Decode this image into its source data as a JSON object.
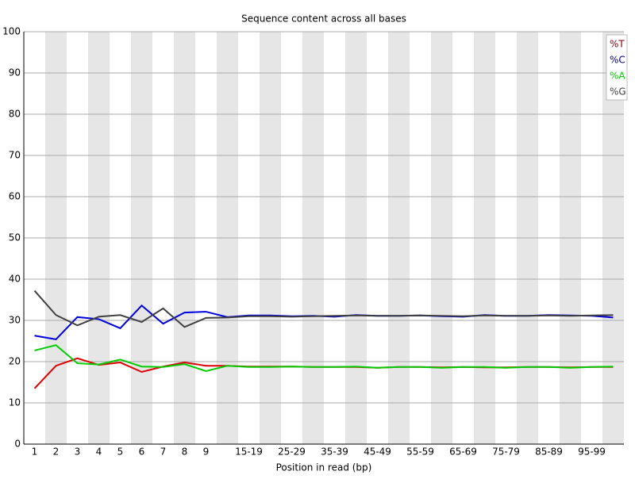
{
  "chart_data": {
    "type": "line",
    "title": "Sequence content across all bases",
    "x_label": "Position in read (bp)",
    "categories": [
      "1",
      "2",
      "3",
      "4",
      "5",
      "6",
      "7",
      "8",
      "9",
      null,
      "15-19",
      null,
      "25-29",
      null,
      "35-39",
      null,
      "45-49",
      null,
      "55-59",
      null,
      "65-69",
      null,
      "75-79",
      null,
      "85-89",
      null,
      "95-99",
      null
    ],
    "series": [
      {
        "name": "%T",
        "color": "#dd0000",
        "label_color": "#800000",
        "values": [
          13.5,
          19.0,
          20.8,
          19.2,
          19.8,
          17.5,
          18.8,
          19.8,
          19.0,
          19.0,
          18.8,
          18.8,
          18.8,
          18.7,
          18.7,
          18.7,
          18.5,
          18.7,
          18.7,
          18.6,
          18.7,
          18.6,
          18.6,
          18.7,
          18.7,
          18.6,
          18.7,
          18.7
        ]
      },
      {
        "name": "%C",
        "color": "#0000dd",
        "label_color": "#000080",
        "values": [
          26.3,
          25.4,
          30.8,
          30.3,
          28.1,
          33.6,
          29.2,
          31.9,
          32.1,
          30.8,
          31.2,
          31.2,
          31.0,
          31.1,
          30.9,
          31.3,
          31.1,
          31.1,
          31.2,
          31.0,
          30.9,
          31.3,
          31.1,
          31.1,
          31.3,
          31.2,
          31.1,
          30.7
        ]
      },
      {
        "name": "%A",
        "color": "#00cc00",
        "label_color": "#00cc00",
        "values": [
          22.7,
          24.0,
          19.6,
          19.3,
          20.5,
          18.8,
          18.7,
          19.4,
          17.7,
          19.0,
          18.7,
          18.7,
          18.8,
          18.7,
          18.7,
          18.8,
          18.5,
          18.7,
          18.7,
          18.5,
          18.7,
          18.7,
          18.5,
          18.7,
          18.7,
          18.5,
          18.7,
          18.8
        ]
      },
      {
        "name": "%G",
        "color": "#404040",
        "label_color": "#404040",
        "values": [
          37.2,
          31.3,
          28.8,
          30.9,
          31.3,
          29.6,
          32.9,
          28.4,
          30.6,
          30.7,
          31.0,
          31.0,
          30.9,
          31.0,
          31.1,
          31.2,
          31.1,
          31.1,
          31.2,
          31.1,
          31.0,
          31.2,
          31.1,
          31.1,
          31.2,
          31.1,
          31.2,
          31.3
        ]
      }
    ],
    "ylim": [
      0,
      100
    ],
    "yticks": [
      0,
      10,
      20,
      30,
      40,
      50,
      60,
      70,
      80,
      90,
      100
    ],
    "grid": true
  }
}
